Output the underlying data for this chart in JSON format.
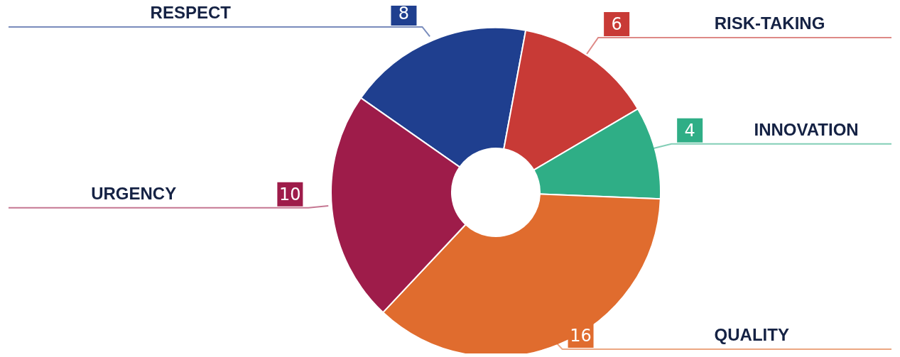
{
  "chart_data": {
    "type": "donut",
    "categories": [
      "RESPECT",
      "RISK-TAKING",
      "INNOVATION",
      "QUALITY",
      "URGENCY"
    ],
    "values": [
      8,
      6,
      4,
      16,
      10
    ],
    "colors": [
      "#1f3f8f",
      "#c83a36",
      "#2fae86",
      "#e06c2e",
      "#9e1c4a"
    ],
    "data_labels": true
  }
}
